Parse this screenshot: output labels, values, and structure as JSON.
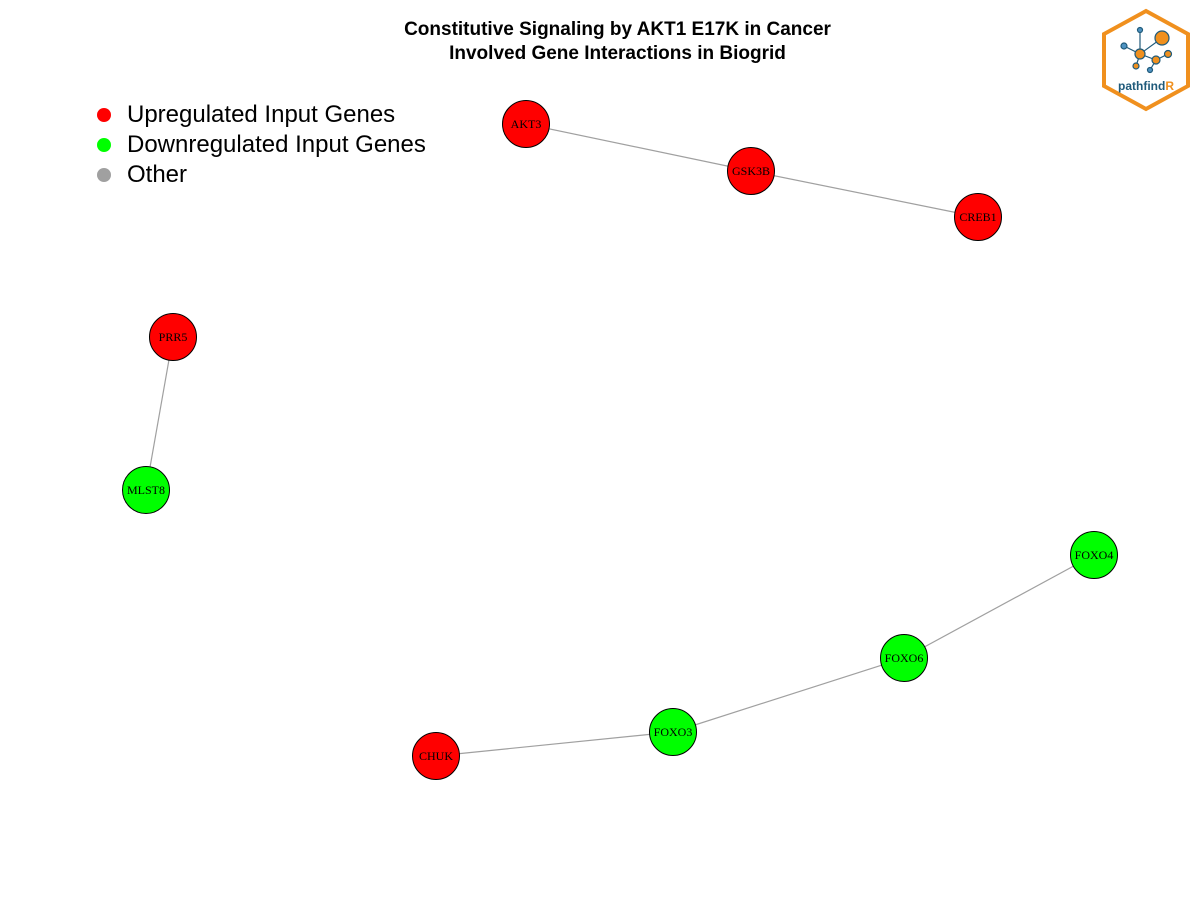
{
  "header": {
    "title_line1": "Constitutive Signaling by AKT1 E17K in Cancer",
    "title_line2": "Involved Gene Interactions in Biogrid"
  },
  "legend": {
    "items": [
      {
        "label": "Upregulated Input Genes",
        "color": "#ff0000"
      },
      {
        "label": "Downregulated Input Genes",
        "color": "#00ff00"
      },
      {
        "label": "Other",
        "color": "#a0a0a0"
      }
    ]
  },
  "logo": {
    "text_main": "pathfind",
    "text_accent": "R",
    "border_color": "#f0901e",
    "text_color": "#1f5a7a"
  },
  "network": {
    "edge_color": "#a0a0a0",
    "nodes": [
      {
        "id": "AKT3",
        "label": "AKT3",
        "status": "up"
      },
      {
        "id": "GSK3B",
        "label": "GSK3B",
        "status": "up"
      },
      {
        "id": "CREB1",
        "label": "CREB1",
        "status": "up"
      },
      {
        "id": "PRR5",
        "label": "PRR5",
        "status": "up"
      },
      {
        "id": "MLST8",
        "label": "MLST8",
        "status": "down"
      },
      {
        "id": "FOXO4",
        "label": "FOXO4",
        "status": "down"
      },
      {
        "id": "FOXO6",
        "label": "FOXO6",
        "status": "down"
      },
      {
        "id": "FOXO3",
        "label": "FOXO3",
        "status": "down"
      },
      {
        "id": "CHUK",
        "label": "CHUK",
        "status": "up"
      }
    ],
    "edges": [
      [
        "AKT3",
        "GSK3B"
      ],
      [
        "GSK3B",
        "CREB1"
      ],
      [
        "PRR5",
        "MLST8"
      ],
      [
        "FOXO4",
        "FOXO6"
      ],
      [
        "FOXO6",
        "FOXO3"
      ],
      [
        "FOXO3",
        "CHUK"
      ]
    ]
  }
}
